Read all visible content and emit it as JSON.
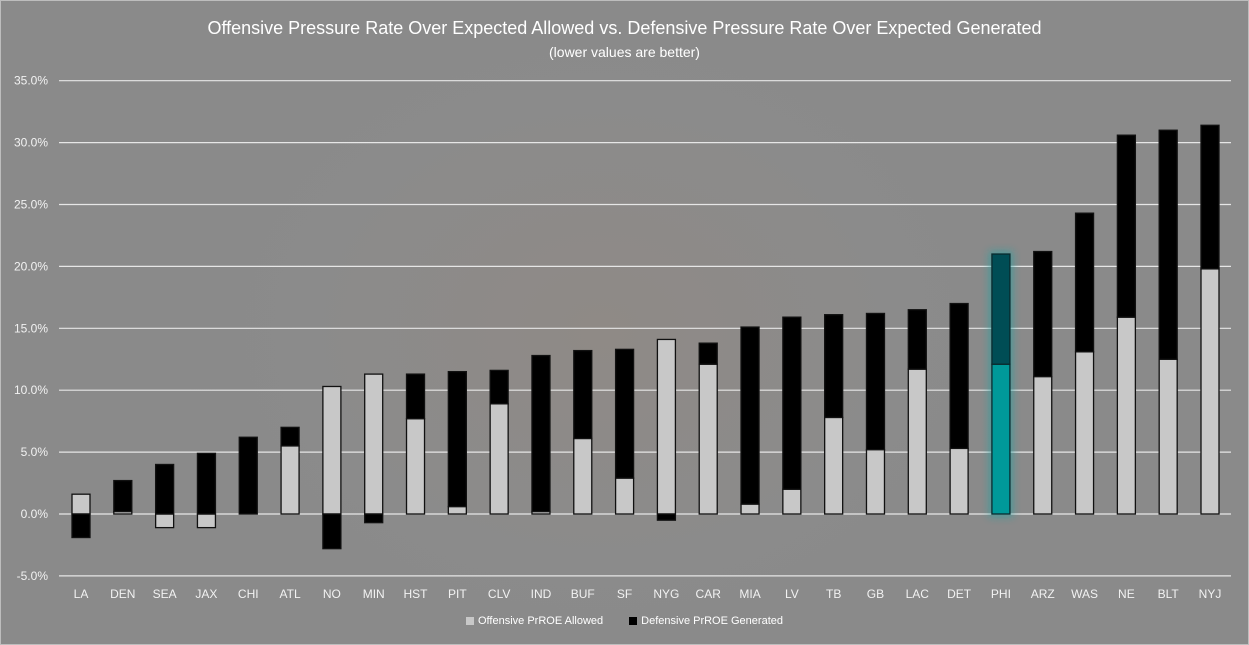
{
  "chart_data": {
    "type": "bar",
    "stacked": true,
    "title": "Offensive Pressure Rate Over Expected Allowed vs. Defensive Pressure Rate Over Expected Generated",
    "subtitle": "(lower values are better)",
    "xlabel": "",
    "ylabel": "",
    "ylim": [
      -5,
      35
    ],
    "yticks": [
      "-5.0%",
      "0.0%",
      "5.0%",
      "10.0%",
      "15.0%",
      "20.0%",
      "25.0%",
      "30.0%",
      "35.0%"
    ],
    "grid": true,
    "legend_position": "bottom",
    "categories": [
      "LA",
      "DEN",
      "SEA",
      "JAX",
      "CHI",
      "ATL",
      "NO",
      "MIN",
      "HST",
      "PIT",
      "CLV",
      "IND",
      "BUF",
      "SF",
      "NYG",
      "CAR",
      "MIA",
      "LV",
      "TB",
      "GB",
      "LAC",
      "DET",
      "PHI",
      "ARZ",
      "WAS",
      "NE",
      "BLT",
      "NYJ"
    ],
    "series": [
      {
        "name": "Offensive PrROE Allowed",
        "color": "#c8c8c8",
        "values": [
          1.6,
          0.2,
          -1.1,
          -1.1,
          0.0,
          5.5,
          10.3,
          11.3,
          7.7,
          0.6,
          8.9,
          0.2,
          6.1,
          2.9,
          14.1,
          12.1,
          0.8,
          2.0,
          7.8,
          5.2,
          11.7,
          5.3,
          12.1,
          11.1,
          13.1,
          15.9,
          12.5,
          19.8
        ]
      },
      {
        "name": "Defensive PrROE Generated",
        "color": "#000000",
        "values": [
          -1.9,
          2.5,
          4.0,
          4.9,
          6.2,
          1.5,
          -2.8,
          -0.7,
          3.6,
          10.9,
          2.7,
          12.6,
          7.1,
          10.4,
          -0.5,
          1.7,
          14.3,
          13.9,
          8.3,
          11.0,
          4.8,
          11.7,
          8.9,
          10.1,
          11.2,
          14.7,
          18.5,
          11.6
        ]
      }
    ],
    "highlight": {
      "category": "PHI",
      "offense_color": "#009999",
      "defense_color": "#004d55"
    }
  }
}
